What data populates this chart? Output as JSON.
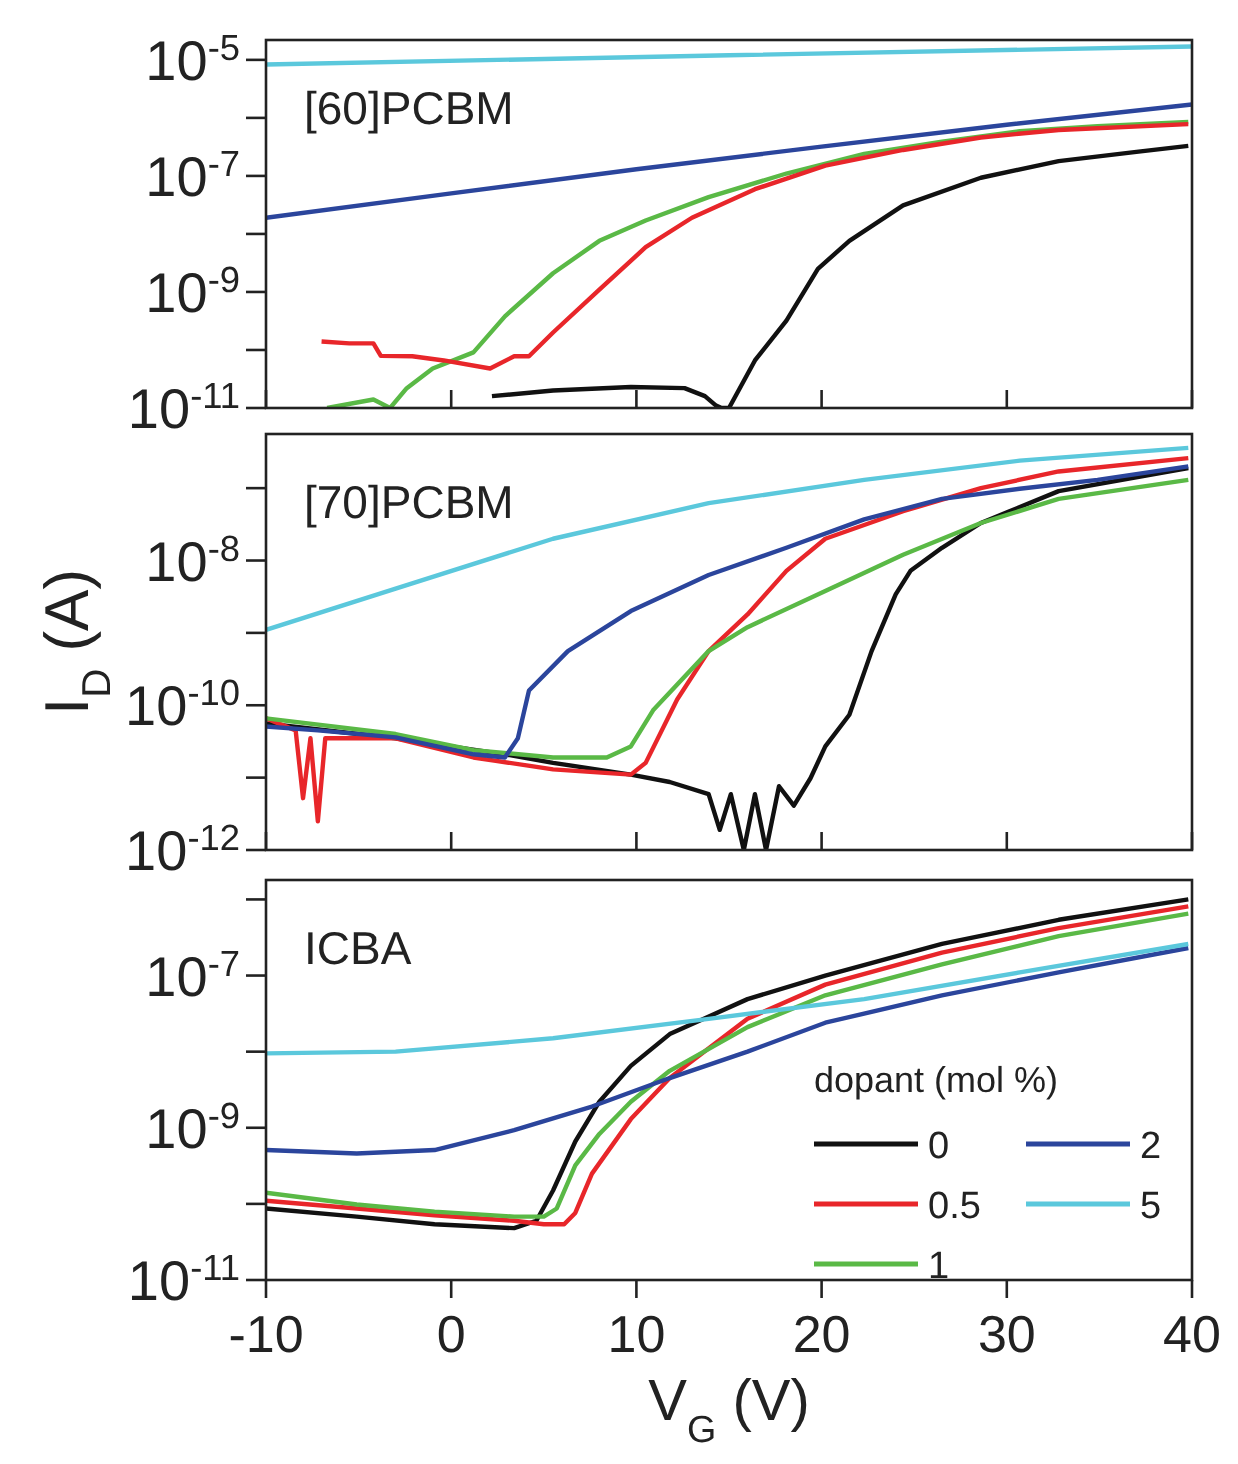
{
  "chart_data": [
    {
      "type": "line",
      "annotations": [
        "[60]PCBM"
      ],
      "log": "y",
      "xlim": [
        -10,
        40
      ],
      "xticks": [
        -10,
        0,
        10,
        20,
        30,
        40
      ],
      "ylim": [
        1e-11,
        2.2e-05
      ],
      "yticks": [
        {
          "value": 1e-11,
          "label": "10$^{-11}$"
        },
        {
          "value": 1e-10,
          "label": null
        },
        {
          "value": 1e-09,
          "label": "10$^{-9}$"
        },
        {
          "value": 1e-08,
          "label": null
        },
        {
          "value": 1e-07,
          "label": "10$^{-7}$"
        },
        {
          "value": 1e-06,
          "label": null
        },
        {
          "value": 1e-05,
          "label": "10$^{-5}$"
        }
      ],
      "tick_labels": "y",
      "legend": false,
      "series": [
        {
          "color": "#5bc8dc",
          "x": [
            -10,
            15,
            40
          ],
          "values": [
            8.3e-06,
            1.2e-05,
            1.7e-05
          ]
        },
        {
          "color": "#2b459c",
          "x": [
            -10,
            0,
            10,
            20,
            30,
            40
          ],
          "values": [
            1.9e-08,
            5e-08,
            1.3e-07,
            3.2e-07,
            7.6e-07,
            1.7e-06
          ]
        },
        {
          "color": "#5ab946",
          "x": [
            -6.7,
            -4.2,
            -3.3,
            -2.4,
            -1,
            1.2,
            2.9,
            5.5,
            8,
            10.5,
            13.9,
            18.1,
            22.3,
            26.5,
            30.7,
            34.9,
            39.8
          ],
          "values": [
            1e-11,
            1.4e-11,
            1e-11,
            2.2e-11,
            4.8e-11,
            9.1e-11,
            3.8e-10,
            2.1e-09,
            7.6e-09,
            1.7e-08,
            4.3e-08,
            1.1e-07,
            2.4e-07,
            3.9e-07,
            5.9e-07,
            7.2e-07,
            8.5e-07
          ]
        },
        {
          "color": "#e8262a",
          "x": [
            -7,
            -5.5,
            -4.2,
            -3.8,
            -2.1,
            -0.4,
            2.1,
            3.4,
            4.2,
            5.5,
            8,
            10.5,
            13,
            16.4,
            20.2,
            24.4,
            28.6,
            32.8,
            39.8
          ],
          "values": [
            1.4e-10,
            1.3e-10,
            1.3e-10,
            7.9e-11,
            7.8e-11,
            6.6e-11,
            4.8e-11,
            7.8e-11,
            7.8e-11,
            2e-10,
            1.1e-09,
            5.9e-09,
            1.9e-08,
            5.9e-08,
            1.5e-07,
            2.8e-07,
            4.6e-07,
            6.2e-07,
            7.8e-07
          ]
        },
        {
          "color": "#111111",
          "x": [
            2.2,
            5.5,
            9.7,
            12.6,
            13.7,
            14.3,
            14.6,
            15.0,
            16.4,
            18.1,
            19.8,
            21.5,
            24.4,
            28.6,
            32.8,
            37,
            39.8
          ],
          "values": [
            1.6e-11,
            2e-11,
            2.3e-11,
            2.2e-11,
            1.6e-11,
            1.1e-11,
            1e-11,
            1e-11,
            6.6e-11,
            3.2e-10,
            2.5e-09,
            7.6e-09,
            3.1e-08,
            9.3e-08,
            1.8e-07,
            2.6e-07,
            3.3e-07
          ]
        }
      ]
    },
    {
      "type": "line",
      "annotations": [
        "[70]PCBM"
      ],
      "ylabel": "I$_{D}$ (A)",
      "log": "y",
      "xlim": [
        -10,
        40
      ],
      "xticks": [
        -10,
        0,
        10,
        20,
        30,
        40
      ],
      "ylim": [
        1e-12,
        5.6e-07
      ],
      "yticks": [
        {
          "value": 1e-12,
          "label": "10$^{-12}$"
        },
        {
          "value": 1e-11,
          "label": null
        },
        {
          "value": 1e-10,
          "label": "10$^{-10}$"
        },
        {
          "value": 1e-09,
          "label": null
        },
        {
          "value": 1e-08,
          "label": "10$^{-8}$"
        },
        {
          "value": 1e-07,
          "label": null
        }
      ],
      "tick_labels": "y",
      "legend": false,
      "series": [
        {
          "color": "#5bc8dc",
          "x": [
            -10,
            -3,
            5.5,
            13.9,
            22.3,
            30.7,
            39.8
          ],
          "values": [
            1.1e-09,
            4.1e-09,
            2e-08,
            6.2e-08,
            1.3e-07,
            2.4e-07,
            3.6e-07
          ]
        },
        {
          "color": "#111111",
          "x": [
            -10,
            -3,
            2.9,
            5.5,
            9.7,
            11.8,
            13.9,
            14.5,
            15.1,
            15.8,
            16.4,
            17,
            17.7,
            18.5,
            19.4,
            20.2,
            21.5,
            22.7,
            24,
            24.8,
            26.5,
            28.6,
            32.8,
            39.8
          ],
          "values": [
            5.6e-11,
            3.5e-11,
            2.1e-11,
            1.6e-11,
            1.1e-11,
            8.7e-12,
            5.9e-12,
            1.9e-12,
            5.9e-12,
            1e-12,
            5.9e-12,
            1e-12,
            7.6e-12,
            4.1e-12,
            9.8e-12,
            2.7e-11,
            7.4e-11,
            5.6e-10,
            3.4e-09,
            7.2e-09,
            1.5e-08,
            3.3e-08,
            9.1e-08,
            1.9e-07
          ]
        },
        {
          "color": "#e8262a",
          "x": [
            -10,
            -8.4,
            -8,
            -7.6,
            -7.2,
            -6.8,
            -3,
            1.2,
            5.5,
            9.7,
            10.5,
            12.2,
            13.9,
            16,
            18.1,
            20.2,
            24.4,
            28.6,
            32.8,
            39.8
          ],
          "values": [
            6.6e-11,
            4.5e-11,
            5.2e-12,
            3.5e-11,
            2.5e-12,
            3.5e-11,
            3.5e-11,
            1.9e-11,
            1.3e-11,
            1.1e-11,
            1.6e-11,
            1.2e-10,
            5.6e-10,
            1.8e-09,
            7.2e-09,
            2e-08,
            4.8e-08,
            1e-07,
            1.7e-07,
            2.6e-07
          ]
        },
        {
          "color": "#5ab946",
          "x": [
            -10,
            -3,
            1.2,
            5.5,
            8.4,
            9.7,
            10.9,
            13.9,
            16,
            20.2,
            24.4,
            28.6,
            32.8,
            39.8
          ],
          "values": [
            6.6e-11,
            4e-11,
            2.4e-11,
            1.9e-11,
            1.9e-11,
            2.7e-11,
            8.5e-11,
            5.6e-10,
            1.2e-09,
            3.8e-09,
            1.2e-08,
            3.3e-08,
            7.1e-08,
            1.3e-07
          ]
        },
        {
          "color": "#2b459c",
          "x": [
            -10,
            -7.2,
            -3,
            1.2,
            2.9,
            3.6,
            4.2,
            6.3,
            9.7,
            13.9,
            18.1,
            22.3,
            26.5,
            30.7,
            34.9,
            39.8
          ],
          "values": [
            5.1e-11,
            4.5e-11,
            3.6e-11,
            2.1e-11,
            1.9e-11,
            3.5e-11,
            1.6e-10,
            5.6e-10,
            2e-09,
            6.3e-09,
            1.5e-08,
            3.7e-08,
            7.1e-08,
            9.8e-08,
            1.3e-07,
            2e-07
          ]
        }
      ]
    },
    {
      "type": "line",
      "annotations": [
        "ICBA"
      ],
      "xlabel": "V$_{G}$ (V)",
      "legend_title": "dopant (mol %)",
      "legend": "bottom right",
      "log": "y",
      "xlim": [
        -10,
        40
      ],
      "xticks": [
        -10,
        0,
        10,
        20,
        30,
        40
      ],
      "ylim": [
        1e-11,
        1.8e-06
      ],
      "yticks": [
        {
          "value": 1e-11,
          "label": "10$^{-11}$"
        },
        {
          "value": 1e-10,
          "label": null
        },
        {
          "value": 1e-09,
          "label": "10$^{-9}$"
        },
        {
          "value": 1e-08,
          "label": null
        },
        {
          "value": 1e-07,
          "label": "10$^{-7}$"
        },
        {
          "value": 1e-06,
          "label": null
        }
      ],
      "series": [
        {
          "name": "0",
          "color": "#111111",
          "x": [
            -10,
            -5.1,
            -0.9,
            3.4,
            4.6,
            5.5,
            6.7,
            8,
            9.7,
            11.8,
            16,
            20.2,
            26.5,
            32.8,
            39.8
          ],
          "values": [
            8.7e-11,
            6.8e-11,
            5.4e-11,
            4.8e-11,
            6e-11,
            1.5e-10,
            6.6e-10,
            2.2e-09,
            6.5e-09,
            1.7e-08,
            4.9e-08,
            1e-07,
            2.6e-07,
            5.4e-07,
            1e-06
          ]
        },
        {
          "name": "0.5",
          "color": "#e8262a",
          "x": [
            -10,
            -5.1,
            -0.9,
            3.4,
            5,
            6.1,
            6.7,
            7.6,
            9.7,
            11.8,
            16,
            20.2,
            26.5,
            32.8,
            39.8
          ],
          "values": [
            1.1e-10,
            8.7e-11,
            7.1e-11,
            6e-11,
            5.4e-11,
            5.4e-11,
            7.6e-11,
            2.5e-10,
            1.3e-09,
            4.5e-09,
            2.7e-08,
            7.6e-08,
            2e-07,
            4.2e-07,
            8.1e-07
          ]
        },
        {
          "name": "1",
          "color": "#5ab946",
          "x": [
            -10,
            -5.1,
            -0.9,
            3.4,
            5,
            5.7,
            6.7,
            8,
            9.7,
            11.8,
            16,
            20.2,
            26.5,
            32.8,
            39.8
          ],
          "values": [
            1.4e-10,
            9.8e-11,
            7.9e-11,
            6.8e-11,
            6.8e-11,
            8.7e-11,
            3.2e-10,
            8.3e-10,
            2.2e-09,
            5.6e-09,
            2.1e-08,
            5.5e-08,
            1.4e-07,
            3.3e-07,
            6.5e-07
          ]
        },
        {
          "name": "2",
          "color": "#2b459c",
          "x": [
            -10,
            -5.1,
            -0.9,
            3.4,
            7.6,
            11.8,
            16,
            20.2,
            26.5,
            32.8,
            39.8
          ],
          "values": [
            5.1e-10,
            4.6e-10,
            5.1e-10,
            9.3e-10,
            1.9e-09,
            4.5e-09,
            1e-08,
            2.4e-08,
            5.5e-08,
            1.1e-07,
            2.3e-07
          ]
        },
        {
          "name": "5",
          "color": "#5bc8dc",
          "x": [
            -10,
            -3,
            5.5,
            13.9,
            22.3,
            30.7,
            39.8
          ],
          "values": [
            9.5e-09,
            1e-08,
            1.5e-08,
            2.7e-08,
            4.9e-08,
            1.1e-07,
            2.6e-07
          ]
        }
      ]
    }
  ]
}
